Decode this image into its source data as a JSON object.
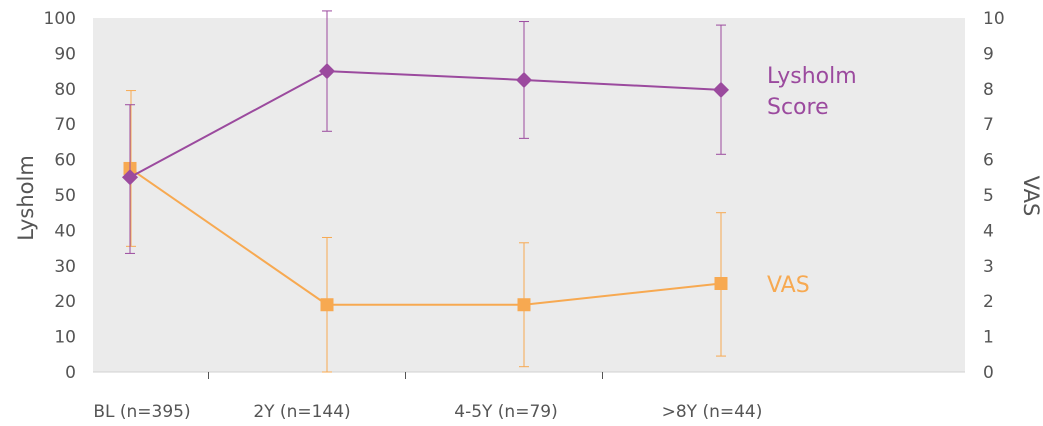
{
  "chart_data": {
    "type": "line",
    "categories": [
      "BL (n=395)",
      "2Y (n=144)",
      "4-5Y (n=79)",
      ">8Y (n=44)"
    ],
    "y_left": {
      "label": "Lysholm",
      "lim": [
        0,
        100
      ],
      "ticks": [
        "0",
        "10",
        "20",
        "30",
        "40",
        "50",
        "60",
        "70",
        "80",
        "90",
        "100"
      ]
    },
    "y_right": {
      "label": "VAS",
      "lim": [
        0,
        10
      ],
      "ticks": [
        "0",
        "1",
        "2",
        "3",
        "4",
        "5",
        "6",
        "7",
        "8",
        "9",
        "10"
      ]
    },
    "grid": false,
    "series": [
      {
        "name_lines": [
          "Lysholm",
          "Score"
        ],
        "axis": "left",
        "marker": "diamond",
        "color": "#9b4a9e",
        "values": [
          55,
          85,
          82.5,
          79.7
        ],
        "err_low": [
          33.5,
          68,
          66,
          61.5
        ],
        "err_high": [
          75.5,
          102,
          99,
          98
        ]
      },
      {
        "name_lines": [
          "VAS"
        ],
        "axis": "right",
        "marker": "square",
        "color": "#f7a951",
        "values": [
          5.75,
          1.9,
          1.9,
          2.5
        ],
        "err_low": [
          3.55,
          0,
          0.15,
          0.45
        ],
        "err_high": [
          7.95,
          3.8,
          3.65,
          4.5
        ]
      }
    ],
    "colors": {
      "plot_background": "#ebebeb",
      "text": "#555555"
    }
  }
}
